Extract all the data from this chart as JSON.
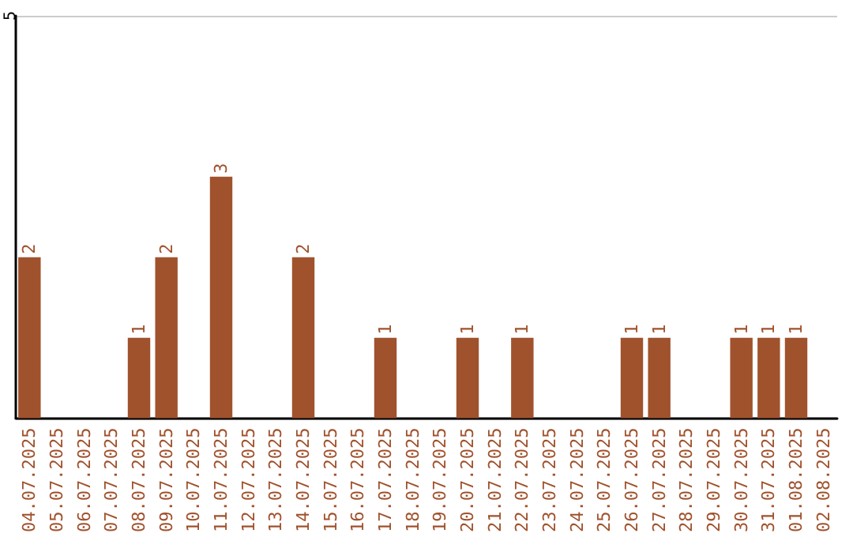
{
  "chart_data": {
    "type": "bar",
    "categories": [
      "04.07.2025",
      "05.07.2025",
      "06.07.2025",
      "07.07.2025",
      "08.07.2025",
      "09.07.2025",
      "10.07.2025",
      "11.07.2025",
      "12.07.2025",
      "13.07.2025",
      "14.07.2025",
      "15.07.2025",
      "16.07.2025",
      "17.07.2025",
      "18.07.2025",
      "19.07.2025",
      "20.07.2025",
      "21.07.2025",
      "22.07.2025",
      "23.07.2025",
      "24.07.2025",
      "25.07.2025",
      "26.07.2025",
      "27.07.2025",
      "28.07.2025",
      "29.07.2025",
      "30.07.2025",
      "31.07.2025",
      "01.08.2025",
      "02.08.2025"
    ],
    "values": [
      2,
      0,
      0,
      0,
      1,
      2,
      0,
      3,
      0,
      0,
      2,
      0,
      0,
      1,
      0,
      0,
      1,
      0,
      1,
      0,
      0,
      0,
      1,
      1,
      0,
      0,
      1,
      1,
      1,
      0
    ],
    "value_labels": [
      "2",
      null,
      null,
      null,
      "1",
      "2",
      null,
      "3",
      null,
      null,
      "2",
      null,
      null,
      "1",
      null,
      null,
      "1",
      null,
      "1",
      null,
      null,
      null,
      "1",
      "1",
      null,
      null,
      "1",
      "1",
      "1",
      null
    ],
    "color": "#a0522d",
    "ylim": [
      0,
      5
    ],
    "yticks": [
      {
        "value": 0,
        "label": null
      },
      5
    ],
    "grid": "y"
  }
}
